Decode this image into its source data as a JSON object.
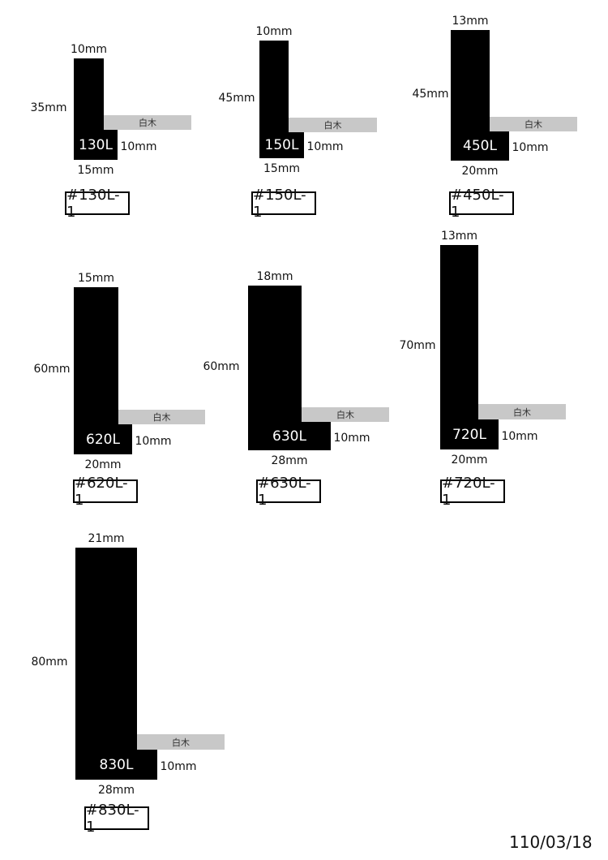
{
  "profiles": [
    {
      "code": "130L",
      "tag": "#130L-1",
      "top_width": "10mm",
      "height": "35mm",
      "lip_height": "10mm",
      "bottom_width": "15mm",
      "wood_label": "白木"
    },
    {
      "code": "150L",
      "tag": "#150L-1",
      "top_width": "10mm",
      "height": "45mm",
      "lip_height": "10mm",
      "bottom_width": "15mm",
      "wood_label": "白木"
    },
    {
      "code": "450L",
      "tag": "#450L-1",
      "top_width": "13mm",
      "height": "45mm",
      "lip_height": "10mm",
      "bottom_width": "20mm",
      "wood_label": "白木"
    },
    {
      "code": "620L",
      "tag": "#620L-1",
      "top_width": "15mm",
      "height": "60mm",
      "lip_height": "10mm",
      "bottom_width": "20mm",
      "wood_label": "白木"
    },
    {
      "code": "630L",
      "tag": "#630L-1",
      "top_width": "18mm",
      "height": "60mm",
      "lip_height": "10mm",
      "bottom_width": "28mm",
      "wood_label": "白木"
    },
    {
      "code": "720L",
      "tag": "#720L-1",
      "top_width": "13mm",
      "height": "70mm",
      "lip_height": "10mm",
      "bottom_width": "20mm",
      "wood_label": "白木"
    },
    {
      "code": "830L",
      "tag": "#830L-1",
      "top_width": "21mm",
      "height": "80mm",
      "lip_height": "10mm",
      "bottom_width": "28mm",
      "wood_label": "白木"
    }
  ],
  "date": "110/03/18",
  "colors": {
    "profile": "#000000",
    "wood": "#c8c8c8"
  }
}
